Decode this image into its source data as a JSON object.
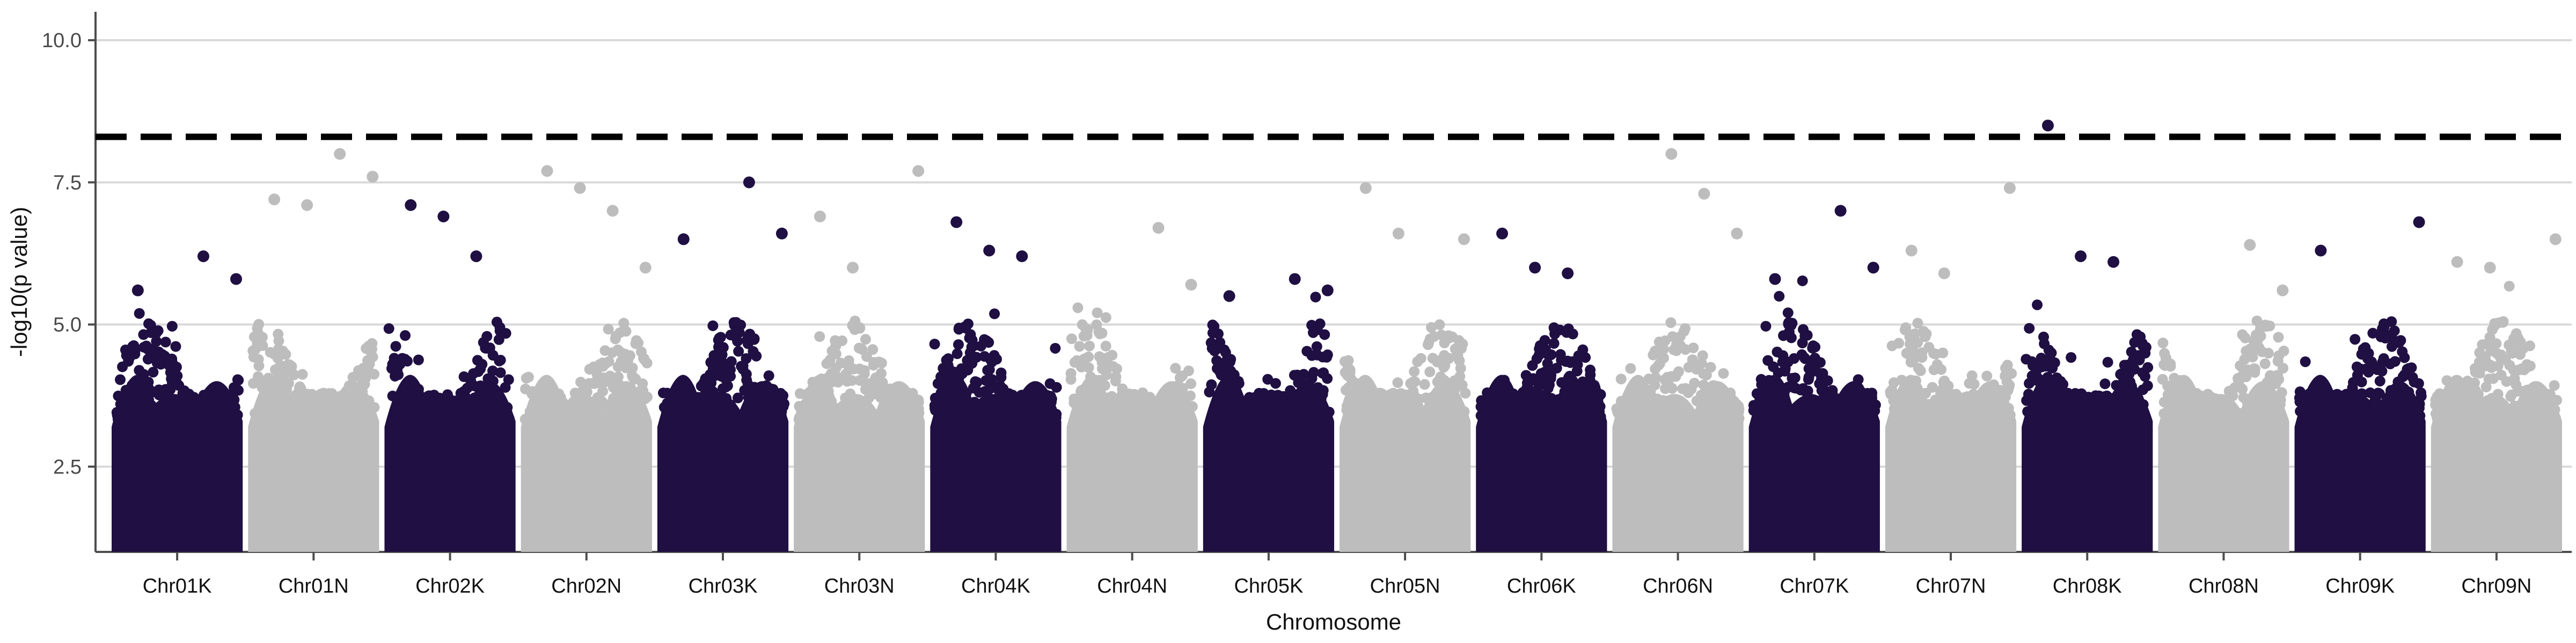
{
  "chart_data": {
    "type": "scatter",
    "title": "",
    "xlabel": "Chromosome",
    "ylabel": "-log10(p value)",
    "ylim": [
      1,
      10.5
    ],
    "yticks": [
      2.5,
      5.0,
      7.5,
      10.0
    ],
    "ytick_labels": [
      "2.5",
      "5.0",
      "7.5",
      "10.0"
    ],
    "grid": "horizontal major lines on",
    "legend": "none",
    "threshold": {
      "y": 8.3,
      "style": "dashed",
      "color": "#000000"
    },
    "colors": {
      "dark": "#1f0f42",
      "light": "#bdbdbd",
      "grid": "#d9d9d9",
      "axis": "#4d4d4d",
      "text": "#111111"
    },
    "categories": [
      "Chr01K",
      "Chr01N",
      "Chr02K",
      "Chr02N",
      "Chr03K",
      "Chr03N",
      "Chr04K",
      "Chr04N",
      "Chr05K",
      "Chr05N",
      "Chr06K",
      "Chr06N",
      "Chr07K",
      "Chr07N",
      "Chr08K",
      "Chr08N",
      "Chr09K",
      "Chr09N"
    ],
    "series": [
      {
        "category": "Chr01K",
        "color": "#1f0f42",
        "max": 6.2,
        "peaks": [
          5.6,
          5.8,
          6.2
        ]
      },
      {
        "category": "Chr01N",
        "color": "#bdbdbd",
        "max": 8.0,
        "peaks": [
          7.1,
          7.2,
          7.6,
          8.0
        ]
      },
      {
        "category": "Chr02K",
        "color": "#1f0f42",
        "max": 7.1,
        "peaks": [
          6.2,
          6.9,
          7.1
        ]
      },
      {
        "category": "Chr02N",
        "color": "#bdbdbd",
        "max": 7.7,
        "peaks": [
          6.0,
          7.0,
          7.4,
          7.7
        ]
      },
      {
        "category": "Chr03K",
        "color": "#1f0f42",
        "max": 7.5,
        "peaks": [
          6.5,
          6.6,
          7.5
        ]
      },
      {
        "category": "Chr03N",
        "color": "#bdbdbd",
        "max": 7.7,
        "peaks": [
          6.0,
          6.9,
          7.7
        ]
      },
      {
        "category": "Chr04K",
        "color": "#1f0f42",
        "max": 6.8,
        "peaks": [
          6.2,
          6.3,
          6.8
        ]
      },
      {
        "category": "Chr04N",
        "color": "#bdbdbd",
        "max": 6.7,
        "peaks": [
          5.7,
          6.7
        ]
      },
      {
        "category": "Chr05K",
        "color": "#1f0f42",
        "max": 5.8,
        "peaks": [
          5.5,
          5.6,
          5.8
        ]
      },
      {
        "category": "Chr05N",
        "color": "#bdbdbd",
        "max": 7.4,
        "peaks": [
          6.6,
          7.4,
          6.5
        ]
      },
      {
        "category": "Chr06K",
        "color": "#1f0f42",
        "max": 6.6,
        "peaks": [
          5.9,
          6.0,
          6.6
        ]
      },
      {
        "category": "Chr06N",
        "color": "#bdbdbd",
        "max": 8.0,
        "peaks": [
          6.6,
          7.3,
          8.0
        ]
      },
      {
        "category": "Chr07K",
        "color": "#1f0f42",
        "max": 7.0,
        "peaks": [
          5.8,
          6.0,
          7.0
        ]
      },
      {
        "category": "Chr07N",
        "color": "#bdbdbd",
        "max": 7.4,
        "peaks": [
          5.9,
          6.3,
          7.4
        ]
      },
      {
        "category": "Chr08K",
        "color": "#1f0f42",
        "max": 8.5,
        "peaks": [
          6.1,
          6.2,
          8.5
        ]
      },
      {
        "category": "Chr08N",
        "color": "#bdbdbd",
        "max": 6.4,
        "peaks": [
          5.6,
          6.4
        ]
      },
      {
        "category": "Chr09K",
        "color": "#1f0f42",
        "max": 6.8,
        "peaks": [
          6.3,
          6.8
        ]
      },
      {
        "category": "Chr09N",
        "color": "#bdbdbd",
        "max": 6.5,
        "peaks": [
          6.0,
          6.1,
          6.5
        ]
      }
    ]
  }
}
